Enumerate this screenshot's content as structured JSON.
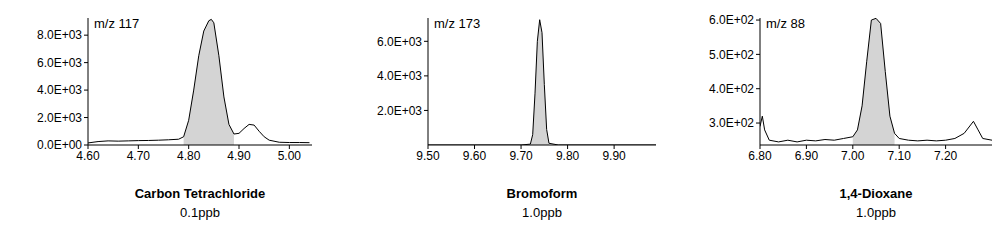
{
  "chart_data": [
    {
      "type": "area",
      "annotation": "m/z 117",
      "title": "Carbon Tetrachloride",
      "subtitle": "0.1ppb",
      "color": "#000000",
      "fill": "#d4d4d4",
      "x": [
        4.6,
        4.62,
        4.64,
        4.66,
        4.68,
        4.7,
        4.72,
        4.74,
        4.76,
        4.78,
        4.79,
        4.8,
        4.81,
        4.82,
        4.83,
        4.84,
        4.845,
        4.85,
        4.86,
        4.87,
        4.88,
        4.89,
        4.9,
        4.91,
        4.92,
        4.93,
        4.94,
        4.95,
        4.96,
        4.98,
        5.0,
        5.02,
        5.04
      ],
      "values": [
        150,
        250,
        300,
        280,
        300,
        320,
        330,
        350,
        380,
        420,
        600,
        1800,
        4000,
        6500,
        8300,
        9050,
        9150,
        8900,
        6500,
        3500,
        1500,
        800,
        850,
        1200,
        1500,
        1450,
        1000,
        600,
        350,
        200,
        180,
        180,
        170
      ],
      "peak_window": [
        4.79,
        4.89
      ],
      "xlim": [
        4.6,
        5.045
      ],
      "xticks": [
        {
          "value": 4.6,
          "label": "4.60"
        },
        {
          "value": 4.7,
          "label": "4.70"
        },
        {
          "value": 4.8,
          "label": "4.80"
        },
        {
          "value": 4.9,
          "label": "4.90"
        },
        {
          "value": 5.0,
          "label": "5.00"
        }
      ],
      "ylim": [
        0,
        9250
      ],
      "yticks": [
        {
          "value": 0,
          "label": "0.0E+00"
        },
        {
          "value": 2000,
          "label": "2.0E+03"
        },
        {
          "value": 4000,
          "label": "4.0E+03"
        },
        {
          "value": 6000,
          "label": "6.0E+03"
        },
        {
          "value": 8000,
          "label": "8.0E+03"
        }
      ]
    },
    {
      "type": "area",
      "annotation": "m/z 173",
      "title": "Bromoform",
      "subtitle": "1.0ppb",
      "color": "#000000",
      "fill": "#d4d4d4",
      "x": [
        9.5,
        9.6,
        9.7,
        9.72,
        9.725,
        9.73,
        9.735,
        9.74,
        9.745,
        9.75,
        9.755,
        9.76,
        9.78,
        9.9,
        9.99
      ],
      "values": [
        0,
        0,
        0,
        50,
        600,
        3000,
        6000,
        7250,
        6500,
        3500,
        900,
        100,
        0,
        0,
        0
      ],
      "peak_window": [
        9.72,
        9.76
      ],
      "xlim": [
        9.5,
        9.99
      ],
      "xticks": [
        {
          "value": 9.5,
          "label": "9.50"
        },
        {
          "value": 9.6,
          "label": "9.60"
        },
        {
          "value": 9.7,
          "label": "9.70"
        },
        {
          "value": 9.8,
          "label": "9.80"
        },
        {
          "value": 9.9,
          "label": "9.90"
        }
      ],
      "ylim": [
        0,
        7350
      ],
      "yticks": [
        {
          "value": 2000,
          "label": "2.0E+03"
        },
        {
          "value": 4000,
          "label": "4.0E+03"
        },
        {
          "value": 6000,
          "label": "6.0E+03"
        }
      ]
    },
    {
      "type": "area",
      "annotation": "m/z 88",
      "title": "1,4-Dioxane",
      "subtitle": "1.0ppb",
      "color": "#000000",
      "fill": "#d4d4d4",
      "x": [
        6.8,
        6.805,
        6.81,
        6.82,
        6.84,
        6.86,
        6.88,
        6.9,
        6.92,
        6.94,
        6.96,
        6.98,
        7.0,
        7.01,
        7.02,
        7.03,
        7.04,
        7.05,
        7.06,
        7.07,
        7.08,
        7.09,
        7.1,
        7.12,
        7.14,
        7.16,
        7.18,
        7.2,
        7.22,
        7.24,
        7.26,
        7.27,
        7.28,
        7.3
      ],
      "values": [
        290,
        320,
        280,
        250,
        245,
        250,
        245,
        250,
        248,
        252,
        250,
        255,
        260,
        280,
        350,
        480,
        600,
        605,
        590,
        450,
        320,
        270,
        255,
        250,
        248,
        250,
        248,
        250,
        255,
        270,
        305,
        280,
        255,
        250
      ],
      "peak_window": [
        7.0,
        7.09
      ],
      "xlim": [
        6.8,
        7.3
      ],
      "xticks": [
        {
          "value": 6.8,
          "label": "6.80"
        },
        {
          "value": 6.9,
          "label": "6.90"
        },
        {
          "value": 7.0,
          "label": "7.00"
        },
        {
          "value": 7.1,
          "label": "7.10"
        },
        {
          "value": 7.2,
          "label": "7.20"
        }
      ],
      "ylim": [
        236,
        606
      ],
      "yticks": [
        {
          "value": 300,
          "label": "3.0E+02"
        },
        {
          "value": 400,
          "label": "4.0E+02"
        },
        {
          "value": 500,
          "label": "5.0E+02"
        },
        {
          "value": 600,
          "label": "6.0E+02"
        }
      ]
    }
  ]
}
